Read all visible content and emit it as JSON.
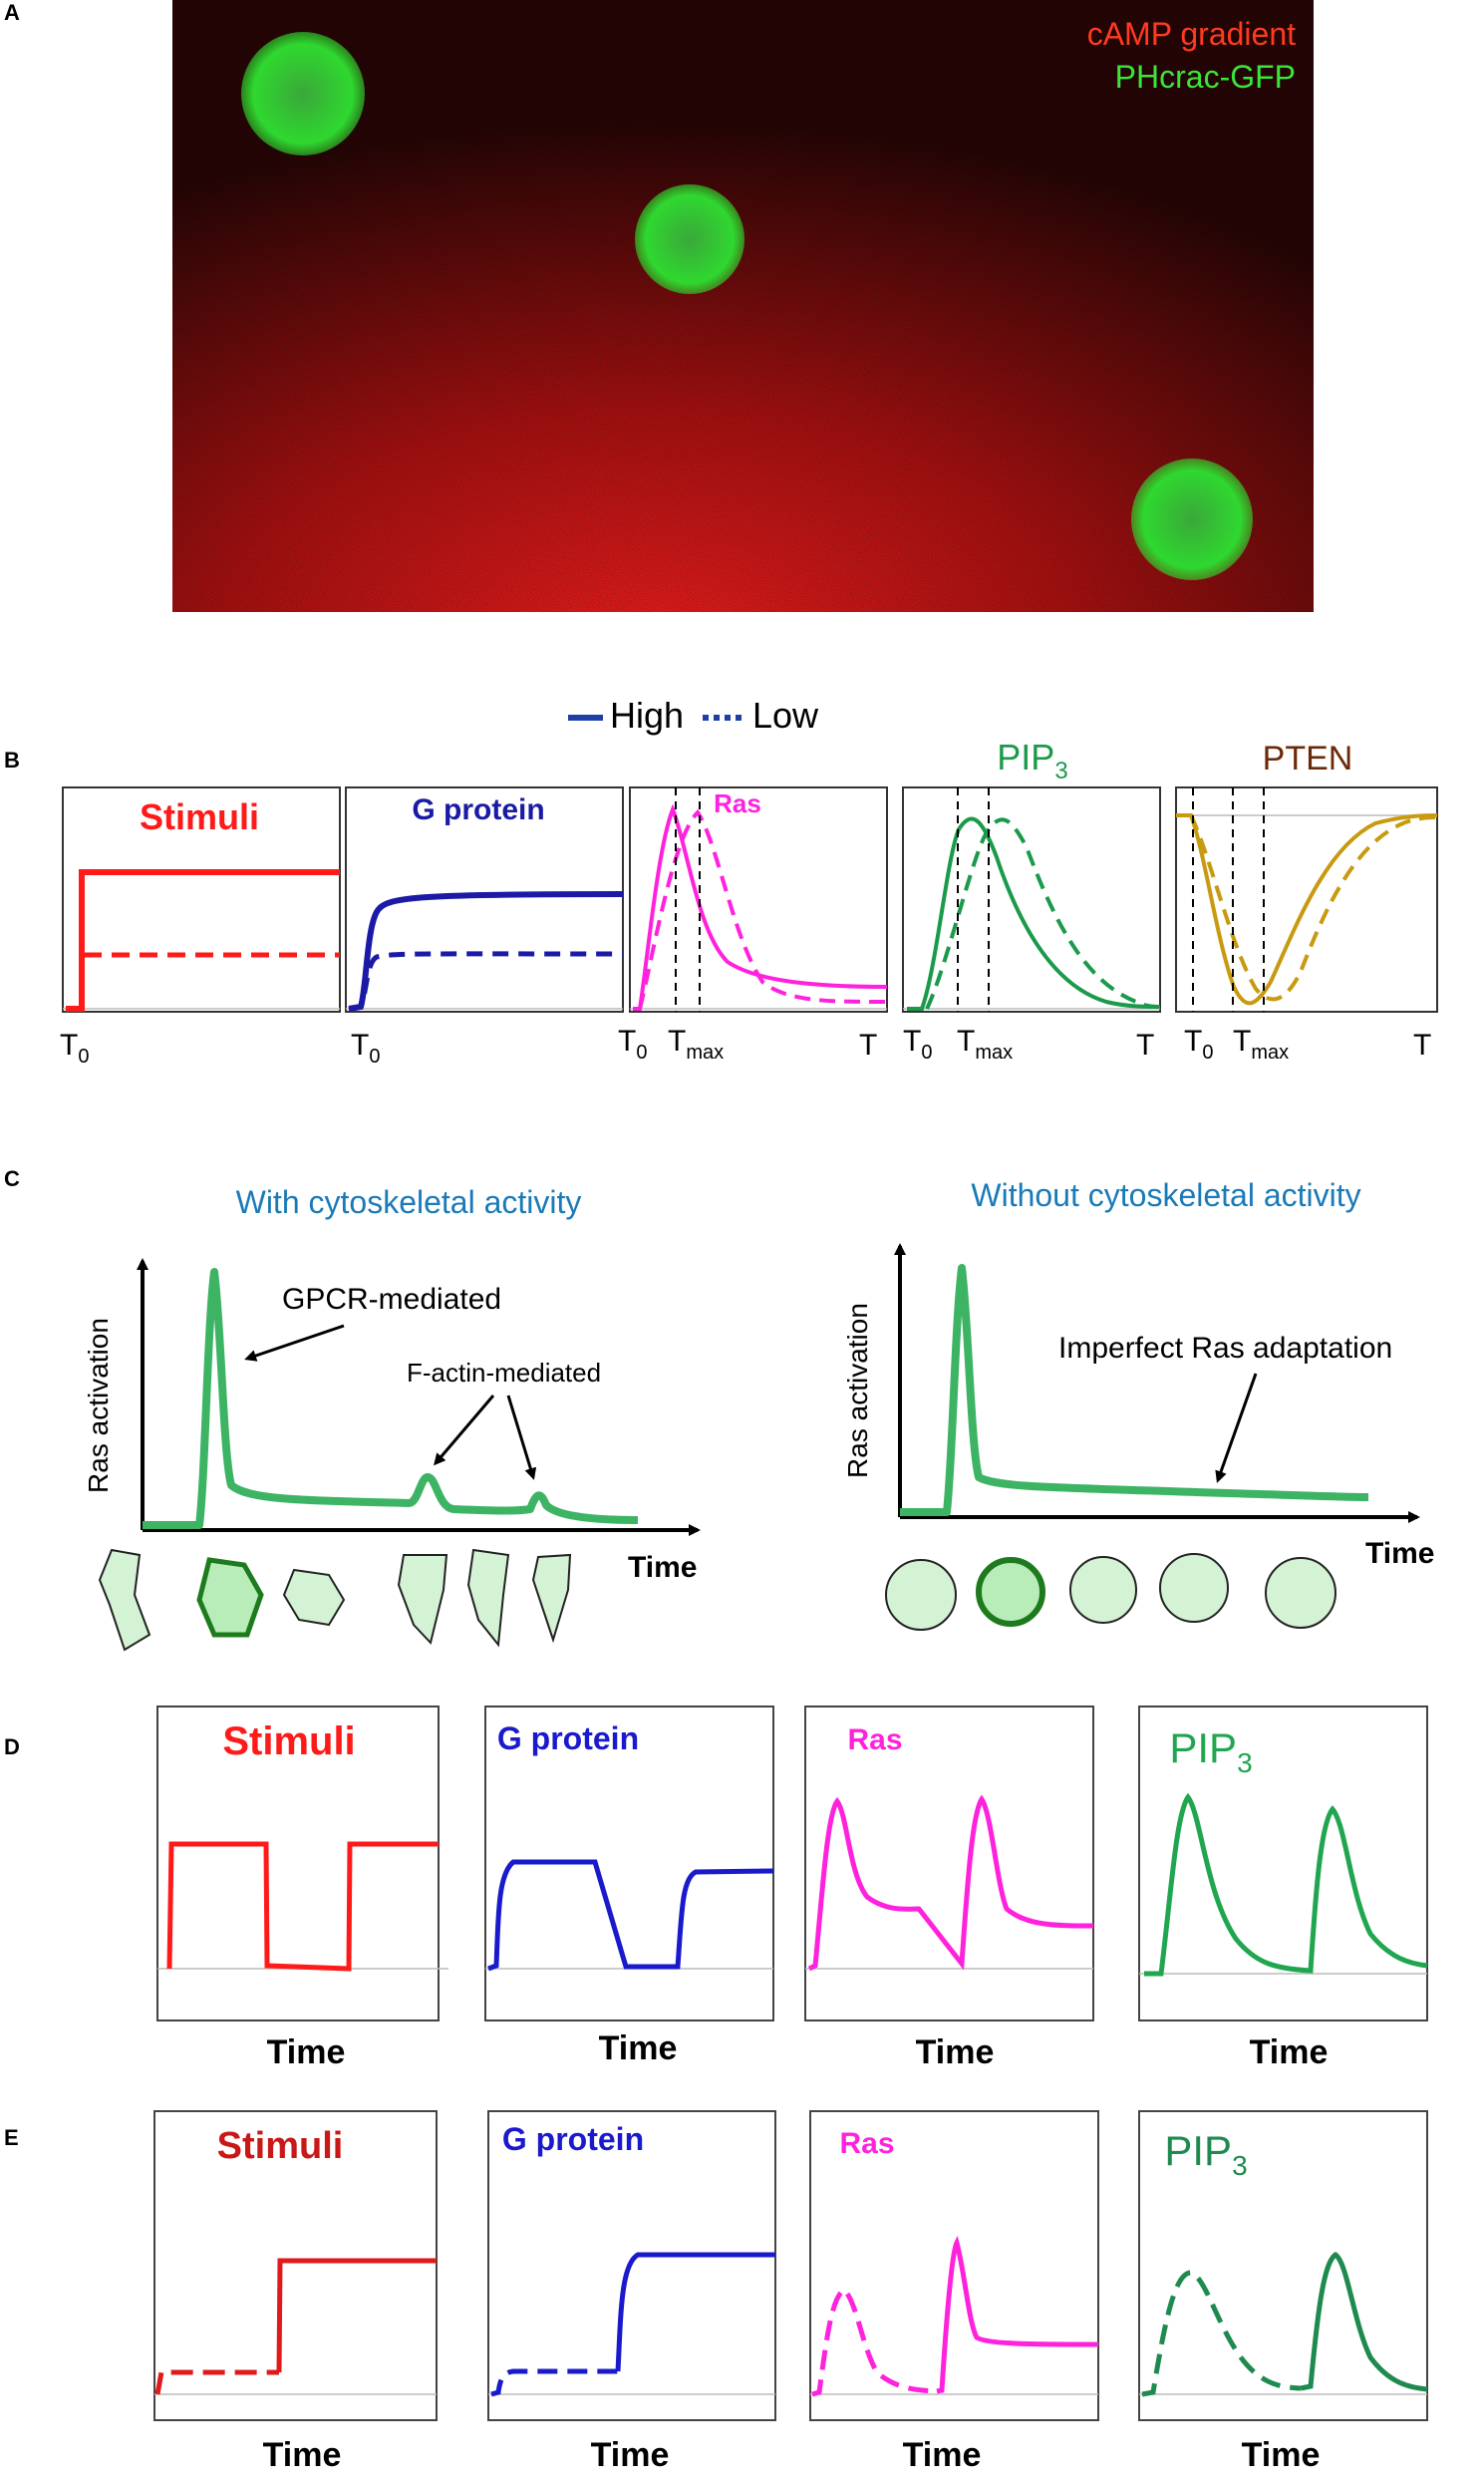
{
  "panels": {
    "A": {
      "letter": "A",
      "legend_gradient": "cAMP gradient",
      "legend_probe": "PHcrac-GFP",
      "colors": {
        "background": "#1a0606",
        "gradient": "#ff2a2a",
        "gfp": "#3ddc3d",
        "legend_gradient": "#ff3b1f",
        "legend_probe": "#39e639"
      }
    },
    "B": {
      "letter": "B",
      "legend_high": "High",
      "legend_low": "Low",
      "legend_color": "#1f3fa6",
      "plots": [
        {
          "title": "Stimuli",
          "color": "#ff1a1a",
          "x_labels": [
            "T0"
          ]
        },
        {
          "title": "G protein",
          "color": "#1a1aa6",
          "x_labels": [
            "T0"
          ]
        },
        {
          "title": "Ras",
          "color": "#ff22dd",
          "x_labels": [
            "T0",
            "Tmax",
            "T"
          ]
        },
        {
          "title": "PIP3",
          "color": "#1a9a4a",
          "x_labels": [
            "T0",
            "Tmax",
            "T"
          ]
        },
        {
          "title": "PTEN",
          "color": "#c89a10",
          "title_color": "#6a2a0a",
          "x_labels": [
            "T0",
            "Tmax",
            "T"
          ]
        }
      ],
      "tick": {
        "T0": {
          "base": "T",
          "sub": "0"
        },
        "Tmax": {
          "base": "T",
          "sub": "max"
        },
        "T": {
          "base": "T",
          "sub": ""
        }
      }
    },
    "C": {
      "letter": "C",
      "left_title": "With cytoskeletal activity",
      "right_title": "Without cytoskeletal activity",
      "ylabel": "Ras activation",
      "xlabel": "Time",
      "annot_gpcr": "GPCR-mediated",
      "annot_factin": "F-actin-mediated",
      "annot_imperfect": "Imperfect Ras adaptation",
      "colors": {
        "title": "#1a7ab8",
        "trace": "#3cb463",
        "cell_fill": "#d4f2d4",
        "cell_active": "#2a8a2a"
      }
    },
    "D": {
      "letter": "D",
      "xlabel": "Time",
      "plots": [
        {
          "title": "Stimuli",
          "color": "#ff1a1a"
        },
        {
          "title": "G protein",
          "color": "#1a1acc"
        },
        {
          "title": "Ras",
          "color": "#ff22dd"
        },
        {
          "title": "PIP3",
          "color": "#1fa64f"
        }
      ]
    },
    "E": {
      "letter": "E",
      "xlabel": "Time",
      "plots": [
        {
          "title": "Stimuli",
          "color": "#e01a1a",
          "title_color": "#c81818"
        },
        {
          "title": "G protein",
          "color": "#1a1acc"
        },
        {
          "title": "Ras",
          "color": "#ff22dd"
        },
        {
          "title": "PIP3",
          "color": "#1f8a4f"
        }
      ]
    }
  }
}
